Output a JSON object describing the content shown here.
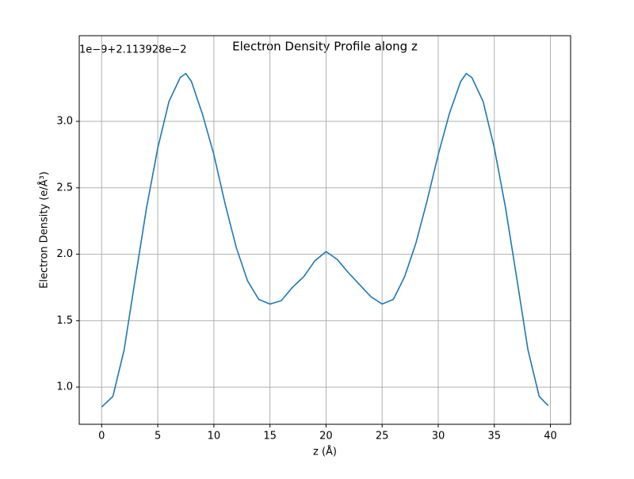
{
  "chart_data": {
    "type": "line",
    "title": "Electron Density Profile along z",
    "xlabel": "z (Å)",
    "ylabel": "Electron Density (e/Å³)",
    "offset_text": "1e−9+2.113928e−2",
    "x": [
      0,
      1,
      2,
      3,
      4,
      5,
      6,
      7,
      7.5,
      8,
      9,
      10,
      11,
      12,
      13,
      14,
      15,
      16,
      17,
      18,
      19,
      20,
      21,
      22,
      23,
      24,
      25,
      26,
      27,
      28,
      29,
      30,
      31,
      32,
      32.5,
      33,
      34,
      35,
      36,
      37,
      38,
      39,
      39.8
    ],
    "series": [
      {
        "name": "density",
        "color": "#1f77b4",
        "values": [
          0.85,
          0.93,
          1.28,
          1.82,
          2.35,
          2.8,
          3.15,
          3.33,
          3.36,
          3.3,
          3.05,
          2.75,
          2.38,
          2.05,
          1.8,
          1.66,
          1.625,
          1.65,
          1.75,
          1.83,
          1.95,
          2.02,
          1.96,
          1.86,
          1.77,
          1.68,
          1.625,
          1.66,
          1.83,
          2.08,
          2.4,
          2.75,
          3.06,
          3.3,
          3.36,
          3.33,
          3.15,
          2.8,
          2.35,
          1.82,
          1.28,
          0.93,
          0.86
        ]
      }
    ],
    "xlim": [
      -2,
      41.8
    ],
    "ylim": [
      0.72,
      3.645
    ],
    "xticks": [
      0,
      5,
      10,
      15,
      20,
      25,
      30,
      35,
      40
    ],
    "yticks": [
      {
        "value": 1,
        "label": "1.0"
      },
      {
        "value": 1.5,
        "label": "1.5"
      },
      {
        "value": 2,
        "label": "2.0"
      },
      {
        "value": 2.5,
        "label": "2.5"
      },
      {
        "value": 3,
        "label": "3.0"
      }
    ],
    "grid": true
  }
}
